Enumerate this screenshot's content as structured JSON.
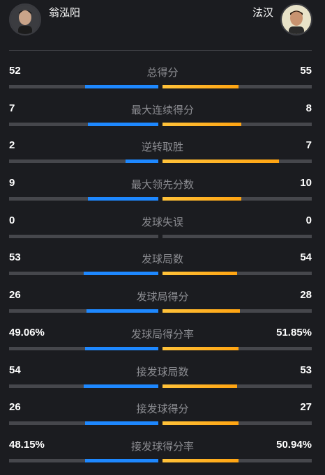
{
  "players": {
    "left": {
      "name": "翁泓阳"
    },
    "right": {
      "name": "法汉"
    }
  },
  "colors": {
    "left_bar": "#1e88ff",
    "right_bar": "#ffb020",
    "track": "#46474c"
  },
  "stats": [
    {
      "label": "总得分",
      "left": "52",
      "right": "55",
      "left_fill": 0.49,
      "right_fill": 0.51
    },
    {
      "label": "最大连续得分",
      "left": "7",
      "right": "8",
      "left_fill": 0.47,
      "right_fill": 0.53
    },
    {
      "label": "逆转取胜",
      "left": "2",
      "right": "7",
      "left_fill": 0.22,
      "right_fill": 0.78
    },
    {
      "label": "最大领先分数",
      "left": "9",
      "right": "10",
      "left_fill": 0.47,
      "right_fill": 0.53
    },
    {
      "label": "发球失误",
      "left": "0",
      "right": "0",
      "left_fill": 0,
      "right_fill": 0
    },
    {
      "label": "发球局数",
      "left": "53",
      "right": "54",
      "left_fill": 0.5,
      "right_fill": 0.5
    },
    {
      "label": "发球局得分",
      "left": "26",
      "right": "28",
      "left_fill": 0.48,
      "right_fill": 0.52
    },
    {
      "label": "发球局得分率",
      "left": "49.06%",
      "right": "51.85%",
      "left_fill": 0.49,
      "right_fill": 0.51
    },
    {
      "label": "接发球局数",
      "left": "54",
      "right": "53",
      "left_fill": 0.5,
      "right_fill": 0.5
    },
    {
      "label": "接发球得分",
      "left": "26",
      "right": "27",
      "left_fill": 0.49,
      "right_fill": 0.51
    },
    {
      "label": "接发球得分率",
      "left": "48.15%",
      "right": "50.94%",
      "left_fill": 0.49,
      "right_fill": 0.51
    }
  ]
}
